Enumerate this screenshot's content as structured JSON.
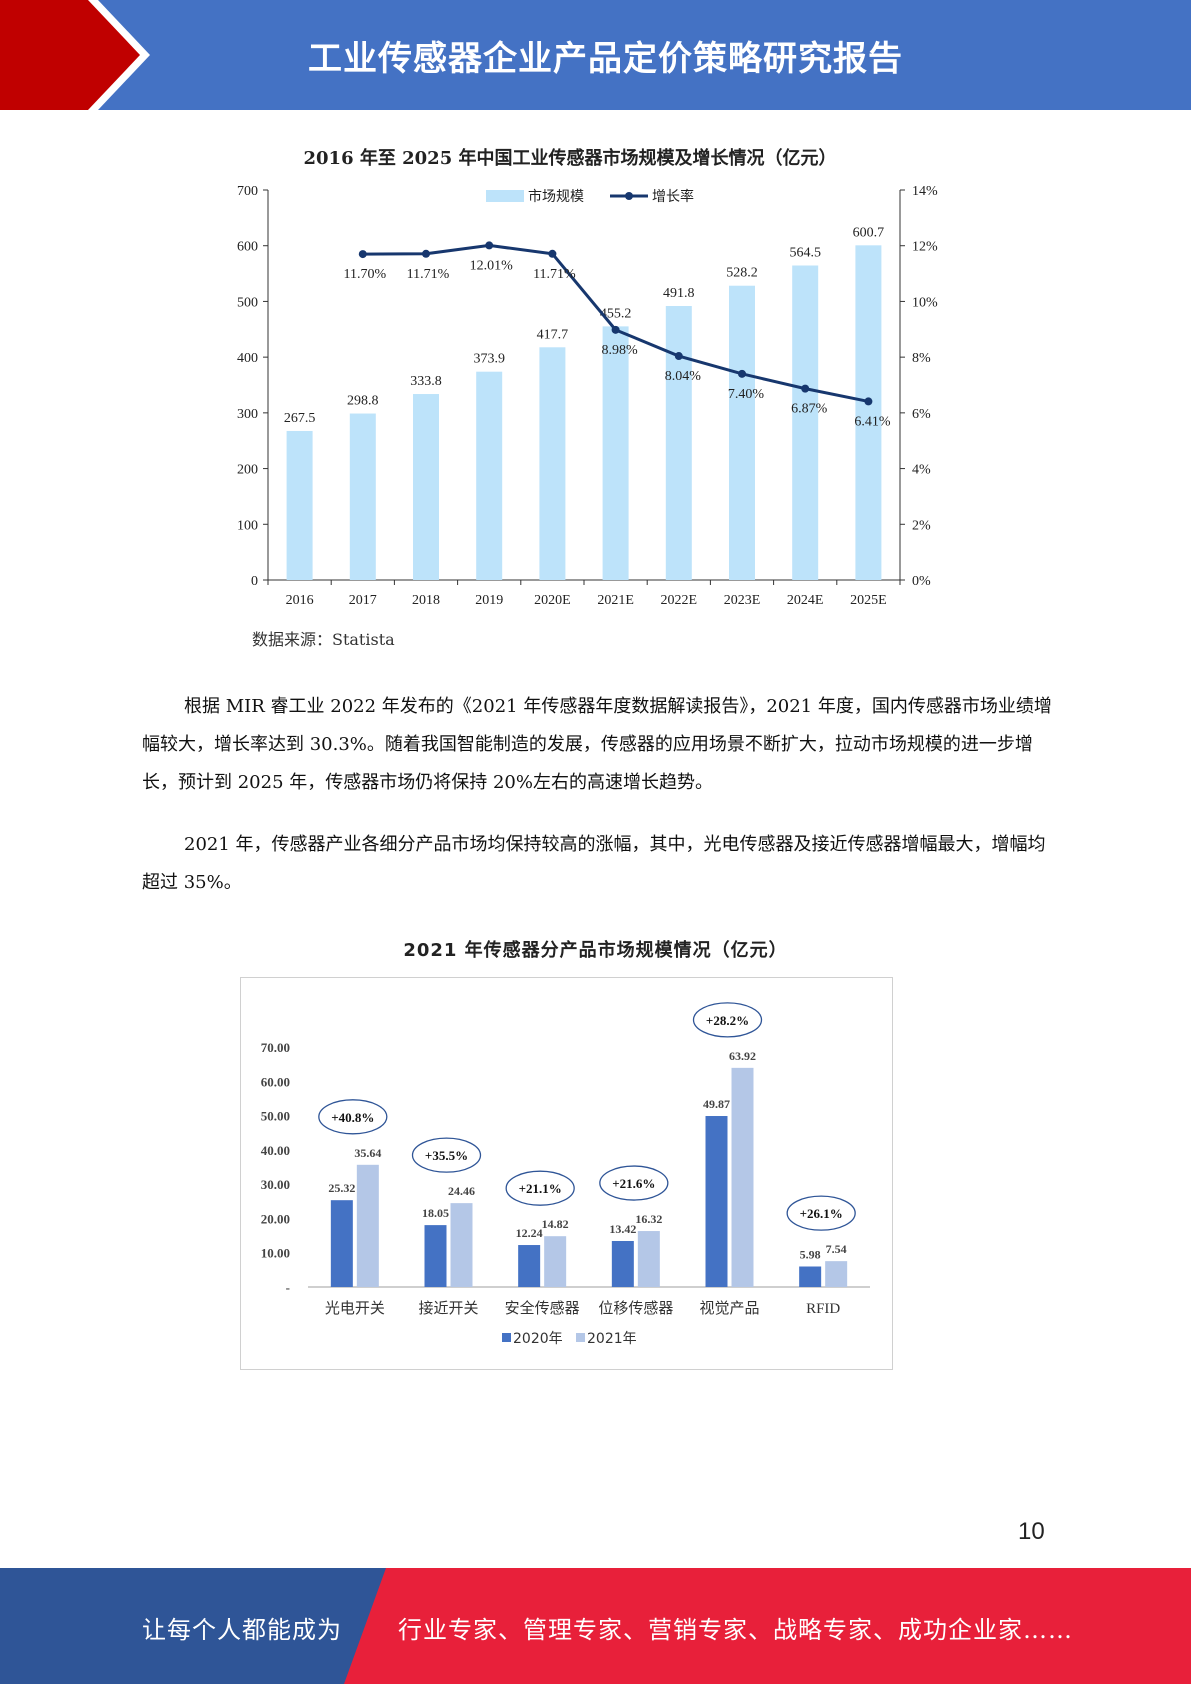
{
  "header": {
    "title": "工业传感器企业产品定价策略研究报告",
    "colors": {
      "band": "#4472c4",
      "accent": "#c00000"
    }
  },
  "chart_data": [
    {
      "type": "bar+line",
      "title": "2016 年至 2025 年中国工业传感器市场规模及增长情况（亿元）",
      "categories": [
        "2016",
        "2017",
        "2018",
        "2019",
        "2020E",
        "2021E",
        "2022E",
        "2023E",
        "2024E",
        "2025E"
      ],
      "series": [
        {
          "name": "市场规模",
          "type": "bar",
          "axis": "left",
          "color": "#bde3fa",
          "values": [
            267.5,
            298.8,
            333.8,
            373.9,
            417.7,
            455.2,
            491.8,
            528.2,
            564.5,
            600.7
          ],
          "labels": [
            "267.5",
            "298.8",
            "333.8",
            "373.9",
            "417.7",
            "455.2",
            "491.8",
            "528.2",
            "564.5",
            "600.7"
          ]
        },
        {
          "name": "增长率",
          "type": "line",
          "axis": "right",
          "color": "#17376e",
          "values": [
            null,
            11.7,
            11.71,
            12.01,
            11.71,
            8.98,
            8.04,
            7.4,
            6.87,
            6.41
          ],
          "labels": [
            "",
            "11.70%",
            "11.71%",
            "12.01%",
            "11.71%",
            "8.98%",
            "8.04%",
            "7.40%",
            "6.87%",
            "6.41%"
          ]
        }
      ],
      "ylim": [
        0,
        700
      ],
      "y_ticks": [
        "0",
        "100",
        "200",
        "300",
        "400",
        "500",
        "600",
        "700"
      ],
      "y2lim": [
        0,
        14
      ],
      "y2_ticks": [
        "0%",
        "2%",
        "4%",
        "6%",
        "8%",
        "10%",
        "12%",
        "14%"
      ],
      "legend_position": "top",
      "grid": false
    },
    {
      "type": "bar",
      "title": "2021 年传感器分产品市场规模情况（亿元）",
      "categories": [
        "光电开关",
        "接近开关",
        "安全传感器",
        "位移传感器",
        "视觉产品",
        "RFID"
      ],
      "series": [
        {
          "name": "2020年",
          "color": "#4472c4",
          "values": [
            25.32,
            18.05,
            12.24,
            13.42,
            49.87,
            5.98
          ],
          "labels": [
            "25.32",
            "18.05",
            "12.24",
            "13.42",
            "49.87",
            "5.98"
          ]
        },
        {
          "name": "2021年",
          "color": "#b4c7e7",
          "values": [
            35.64,
            24.46,
            14.82,
            16.32,
            63.92,
            7.54
          ],
          "labels": [
            "35.64",
            "24.46",
            "14.82",
            "16.32",
            "63.92",
            "7.54"
          ]
        }
      ],
      "annotations": [
        "+40.8%",
        "+35.5%",
        "+21.1%",
        "+21.6%",
        "+28.2%",
        "+26.1%"
      ],
      "ylim": [
        0,
        70
      ],
      "y_ticks": [
        "-",
        "10.00",
        "20.00",
        "30.00",
        "40.00",
        "50.00",
        "60.00",
        "70.00"
      ],
      "legend_position": "bottom",
      "grid": false
    }
  ],
  "source": "数据来源：Statista",
  "paragraphs": [
    "根据 MIR 睿工业 2022 年发布的《2021 年传感器年度数据解读报告》，2021 年度，国内传感器市场业绩增幅较大，增长率达到 30.3%。随着我国智能制造的发展，传感器的应用场景不断扩大，拉动市场规模的进一步增长，预计到 2025 年，传感器市场仍将保持 20%左右的高速增长趋势。",
    "2021 年，传感器产业各细分产品市场均保持较高的涨幅，其中，光电传感器及接近传感器增幅最大，增幅均超过 35%。"
  ],
  "page_number": "10",
  "footer": {
    "left": "让每个人都能成为",
    "right": "行业专家、管理专家、营销专家、战略专家、成功企业家……",
    "colors": {
      "left": "#2f5597",
      "right": "#e8203a"
    }
  }
}
